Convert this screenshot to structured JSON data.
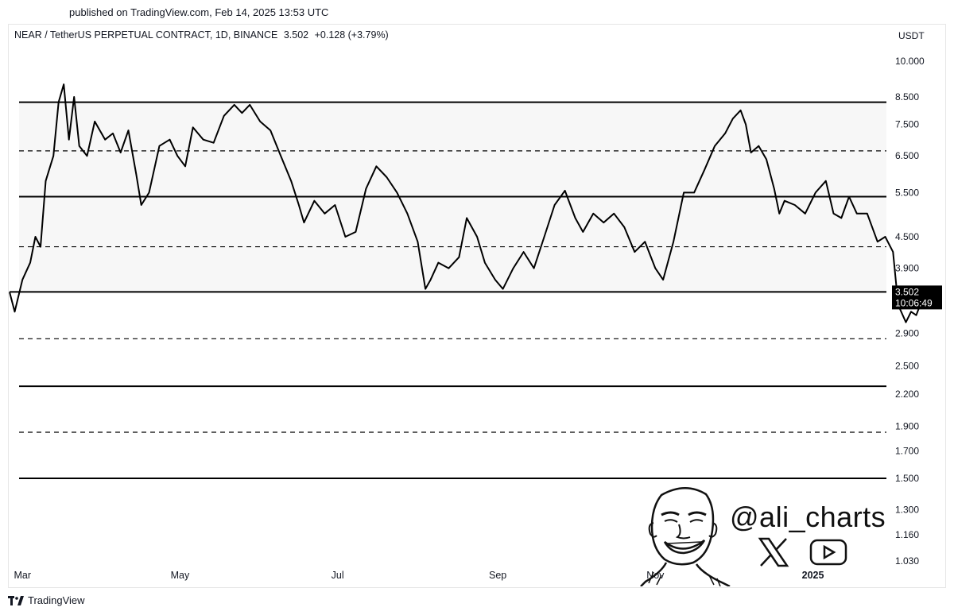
{
  "header": {
    "published": "published on TradingView.com, Feb 14, 2025 13:53 UTC"
  },
  "legend": {
    "symbol": "NEAR / TetherUS PERPETUAL CONTRACT, 1D, BINANCE",
    "price": "3.502",
    "change": "+0.128 (+3.79%)"
  },
  "price_axis": {
    "currency": "USDT",
    "current_price_label": "3.502",
    "countdown_label": "10:06:49"
  },
  "footer": {
    "brand": "TradingView"
  },
  "branding": {
    "handle": "@ali_charts"
  },
  "chart_data": {
    "type": "line",
    "scale": "log",
    "ylim": [
      1.03,
      11.0
    ],
    "xlim": [
      "2024-02-25",
      "2025-02-20"
    ],
    "y_ticks": [
      10.0,
      8.5,
      7.5,
      6.5,
      5.5,
      4.5,
      3.9,
      2.9,
      2.5,
      2.2,
      1.9,
      1.7,
      1.5,
      1.3,
      1.16,
      1.03
    ],
    "y_tick_labels": [
      "10.000",
      "8.500",
      "7.500",
      "6.500",
      "5.500",
      "4.500",
      "3.900",
      "2.900",
      "2.500",
      "2.200",
      "1.900",
      "1.700",
      "1.500",
      "1.300",
      "1.160",
      "1.030"
    ],
    "x_ticks": [
      {
        "date": "2024-03-01",
        "label": "Mar",
        "bold": false
      },
      {
        "date": "2024-05-01",
        "label": "May",
        "bold": false
      },
      {
        "date": "2024-07-01",
        "label": "Jul",
        "bold": false
      },
      {
        "date": "2024-09-01",
        "label": "Sep",
        "bold": false
      },
      {
        "date": "2024-11-01",
        "label": "Nov",
        "bold": false
      },
      {
        "date": "2025-01-01",
        "label": "2025",
        "bold": true
      }
    ],
    "levels": [
      {
        "price": 8.3,
        "style": "solid"
      },
      {
        "price": 6.65,
        "style": "dashed"
      },
      {
        "price": 5.4,
        "style": "solid"
      },
      {
        "price": 4.3,
        "style": "dashed"
      },
      {
        "price": 3.502,
        "style": "solid"
      },
      {
        "price": 2.83,
        "style": "dashed"
      },
      {
        "price": 2.28,
        "style": "solid"
      },
      {
        "price": 1.85,
        "style": "dashed"
      },
      {
        "price": 1.5,
        "style": "solid"
      }
    ],
    "range_shade": [
      3.502,
      8.3
    ],
    "series": [
      {
        "color": "#000000",
        "points": [
          [
            "2024-02-25",
            3.5
          ],
          [
            "2024-02-27",
            3.2
          ],
          [
            "2024-03-01",
            3.7
          ],
          [
            "2024-03-04",
            4.0
          ],
          [
            "2024-03-06",
            4.5
          ],
          [
            "2024-03-08",
            4.3
          ],
          [
            "2024-03-10",
            5.8
          ],
          [
            "2024-03-13",
            6.5
          ],
          [
            "2024-03-15",
            8.3
          ],
          [
            "2024-03-17",
            9.0
          ],
          [
            "2024-03-19",
            7.0
          ],
          [
            "2024-03-21",
            8.5
          ],
          [
            "2024-03-23",
            6.8
          ],
          [
            "2024-03-26",
            6.5
          ],
          [
            "2024-03-29",
            7.6
          ],
          [
            "2024-04-02",
            7.0
          ],
          [
            "2024-04-05",
            7.2
          ],
          [
            "2024-04-08",
            6.6
          ],
          [
            "2024-04-11",
            7.3
          ],
          [
            "2024-04-14",
            6.0
          ],
          [
            "2024-04-16",
            5.2
          ],
          [
            "2024-04-19",
            5.5
          ],
          [
            "2024-04-23",
            6.8
          ],
          [
            "2024-04-27",
            7.0
          ],
          [
            "2024-04-30",
            6.5
          ],
          [
            "2024-05-03",
            6.2
          ],
          [
            "2024-05-06",
            7.4
          ],
          [
            "2024-05-10",
            7.0
          ],
          [
            "2024-05-14",
            6.9
          ],
          [
            "2024-05-18",
            7.8
          ],
          [
            "2024-05-22",
            8.2
          ],
          [
            "2024-05-25",
            7.9
          ],
          [
            "2024-05-28",
            8.2
          ],
          [
            "2024-06-01",
            7.6
          ],
          [
            "2024-06-05",
            7.3
          ],
          [
            "2024-06-09",
            6.5
          ],
          [
            "2024-06-13",
            5.8
          ],
          [
            "2024-06-16",
            5.2
          ],
          [
            "2024-06-18",
            4.8
          ],
          [
            "2024-06-22",
            5.3
          ],
          [
            "2024-06-26",
            5.0
          ],
          [
            "2024-06-30",
            5.2
          ],
          [
            "2024-07-04",
            4.5
          ],
          [
            "2024-07-08",
            4.6
          ],
          [
            "2024-07-12",
            5.6
          ],
          [
            "2024-07-16",
            6.2
          ],
          [
            "2024-07-20",
            5.9
          ],
          [
            "2024-07-24",
            5.5
          ],
          [
            "2024-07-28",
            5.0
          ],
          [
            "2024-08-01",
            4.4
          ],
          [
            "2024-08-04",
            3.55
          ],
          [
            "2024-08-06",
            3.7
          ],
          [
            "2024-08-09",
            4.0
          ],
          [
            "2024-08-13",
            3.9
          ],
          [
            "2024-08-17",
            4.1
          ],
          [
            "2024-08-20",
            4.9
          ],
          [
            "2024-08-24",
            4.5
          ],
          [
            "2024-08-27",
            4.0
          ],
          [
            "2024-08-31",
            3.7
          ],
          [
            "2024-09-03",
            3.55
          ],
          [
            "2024-09-07",
            3.9
          ],
          [
            "2024-09-11",
            4.2
          ],
          [
            "2024-09-15",
            3.9
          ],
          [
            "2024-09-19",
            4.5
          ],
          [
            "2024-09-23",
            5.2
          ],
          [
            "2024-09-27",
            5.55
          ],
          [
            "2024-10-01",
            4.9
          ],
          [
            "2024-10-04",
            4.6
          ],
          [
            "2024-10-08",
            5.0
          ],
          [
            "2024-10-12",
            4.8
          ],
          [
            "2024-10-16",
            5.0
          ],
          [
            "2024-10-20",
            4.7
          ],
          [
            "2024-10-24",
            4.2
          ],
          [
            "2024-10-28",
            4.4
          ],
          [
            "2024-11-01",
            3.9
          ],
          [
            "2024-11-04",
            3.7
          ],
          [
            "2024-11-08",
            4.4
          ],
          [
            "2024-11-12",
            5.5
          ],
          [
            "2024-11-16",
            5.5
          ],
          [
            "2024-11-20",
            6.1
          ],
          [
            "2024-11-24",
            6.8
          ],
          [
            "2024-11-28",
            7.2
          ],
          [
            "2024-12-01",
            7.7
          ],
          [
            "2024-12-04",
            8.0
          ],
          [
            "2024-12-06",
            7.5
          ],
          [
            "2024-12-08",
            6.6
          ],
          [
            "2024-12-11",
            6.8
          ],
          [
            "2024-12-14",
            6.4
          ],
          [
            "2024-12-17",
            5.6
          ],
          [
            "2024-12-19",
            5.0
          ],
          [
            "2024-12-21",
            5.3
          ],
          [
            "2024-12-25",
            5.2
          ],
          [
            "2024-12-29",
            5.0
          ],
          [
            "2025-01-02",
            5.5
          ],
          [
            "2025-01-06",
            5.8
          ],
          [
            "2025-01-09",
            5.0
          ],
          [
            "2025-01-12",
            4.9
          ],
          [
            "2025-01-15",
            5.4
          ],
          [
            "2025-01-18",
            5.0
          ],
          [
            "2025-01-22",
            5.0
          ],
          [
            "2025-01-26",
            4.4
          ],
          [
            "2025-01-29",
            4.5
          ],
          [
            "2025-02-01",
            4.2
          ],
          [
            "2025-02-03",
            3.3
          ],
          [
            "2025-02-06",
            3.05
          ],
          [
            "2025-02-08",
            3.2
          ],
          [
            "2025-02-10",
            3.15
          ],
          [
            "2025-02-12",
            3.35
          ],
          [
            "2025-02-14",
            3.502
          ]
        ]
      }
    ]
  }
}
